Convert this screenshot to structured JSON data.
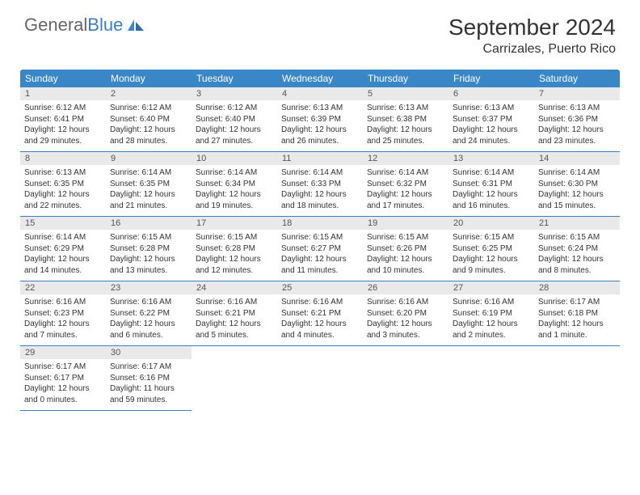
{
  "logo": {
    "part1": "General",
    "part2": "Blue"
  },
  "title": "September 2024",
  "location": "Carrizales, Puerto Rico",
  "colors": {
    "header_bg": "#3a87c8",
    "header_fg": "#ffffff",
    "daynum_bg": "#e9e9e9",
    "daynum_fg": "#555555",
    "border": "#3a7fc4",
    "text": "#333333"
  },
  "dayNames": [
    "Sunday",
    "Monday",
    "Tuesday",
    "Wednesday",
    "Thursday",
    "Friday",
    "Saturday"
  ],
  "days": [
    {
      "n": "1",
      "sr": "6:12 AM",
      "ss": "6:41 PM",
      "dl": "12 hours and 29 minutes."
    },
    {
      "n": "2",
      "sr": "6:12 AM",
      "ss": "6:40 PM",
      "dl": "12 hours and 28 minutes."
    },
    {
      "n": "3",
      "sr": "6:12 AM",
      "ss": "6:40 PM",
      "dl": "12 hours and 27 minutes."
    },
    {
      "n": "4",
      "sr": "6:13 AM",
      "ss": "6:39 PM",
      "dl": "12 hours and 26 minutes."
    },
    {
      "n": "5",
      "sr": "6:13 AM",
      "ss": "6:38 PM",
      "dl": "12 hours and 25 minutes."
    },
    {
      "n": "6",
      "sr": "6:13 AM",
      "ss": "6:37 PM",
      "dl": "12 hours and 24 minutes."
    },
    {
      "n": "7",
      "sr": "6:13 AM",
      "ss": "6:36 PM",
      "dl": "12 hours and 23 minutes."
    },
    {
      "n": "8",
      "sr": "6:13 AM",
      "ss": "6:35 PM",
      "dl": "12 hours and 22 minutes."
    },
    {
      "n": "9",
      "sr": "6:14 AM",
      "ss": "6:35 PM",
      "dl": "12 hours and 21 minutes."
    },
    {
      "n": "10",
      "sr": "6:14 AM",
      "ss": "6:34 PM",
      "dl": "12 hours and 19 minutes."
    },
    {
      "n": "11",
      "sr": "6:14 AM",
      "ss": "6:33 PM",
      "dl": "12 hours and 18 minutes."
    },
    {
      "n": "12",
      "sr": "6:14 AM",
      "ss": "6:32 PM",
      "dl": "12 hours and 17 minutes."
    },
    {
      "n": "13",
      "sr": "6:14 AM",
      "ss": "6:31 PM",
      "dl": "12 hours and 16 minutes."
    },
    {
      "n": "14",
      "sr": "6:14 AM",
      "ss": "6:30 PM",
      "dl": "12 hours and 15 minutes."
    },
    {
      "n": "15",
      "sr": "6:14 AM",
      "ss": "6:29 PM",
      "dl": "12 hours and 14 minutes."
    },
    {
      "n": "16",
      "sr": "6:15 AM",
      "ss": "6:28 PM",
      "dl": "12 hours and 13 minutes."
    },
    {
      "n": "17",
      "sr": "6:15 AM",
      "ss": "6:28 PM",
      "dl": "12 hours and 12 minutes."
    },
    {
      "n": "18",
      "sr": "6:15 AM",
      "ss": "6:27 PM",
      "dl": "12 hours and 11 minutes."
    },
    {
      "n": "19",
      "sr": "6:15 AM",
      "ss": "6:26 PM",
      "dl": "12 hours and 10 minutes."
    },
    {
      "n": "20",
      "sr": "6:15 AM",
      "ss": "6:25 PM",
      "dl": "12 hours and 9 minutes."
    },
    {
      "n": "21",
      "sr": "6:15 AM",
      "ss": "6:24 PM",
      "dl": "12 hours and 8 minutes."
    },
    {
      "n": "22",
      "sr": "6:16 AM",
      "ss": "6:23 PM",
      "dl": "12 hours and 7 minutes."
    },
    {
      "n": "23",
      "sr": "6:16 AM",
      "ss": "6:22 PM",
      "dl": "12 hours and 6 minutes."
    },
    {
      "n": "24",
      "sr": "6:16 AM",
      "ss": "6:21 PM",
      "dl": "12 hours and 5 minutes."
    },
    {
      "n": "25",
      "sr": "6:16 AM",
      "ss": "6:21 PM",
      "dl": "12 hours and 4 minutes."
    },
    {
      "n": "26",
      "sr": "6:16 AM",
      "ss": "6:20 PM",
      "dl": "12 hours and 3 minutes."
    },
    {
      "n": "27",
      "sr": "6:16 AM",
      "ss": "6:19 PM",
      "dl": "12 hours and 2 minutes."
    },
    {
      "n": "28",
      "sr": "6:17 AM",
      "ss": "6:18 PM",
      "dl": "12 hours and 1 minute."
    },
    {
      "n": "29",
      "sr": "6:17 AM",
      "ss": "6:17 PM",
      "dl": "12 hours and 0 minutes."
    },
    {
      "n": "30",
      "sr": "6:17 AM",
      "ss": "6:16 PM",
      "dl": "11 hours and 59 minutes."
    }
  ],
  "labels": {
    "sunrise": "Sunrise:",
    "sunset": "Sunset:",
    "daylight": "Daylight:"
  },
  "layout": {
    "cols": 7,
    "rows": 5,
    "start_col": 0
  }
}
